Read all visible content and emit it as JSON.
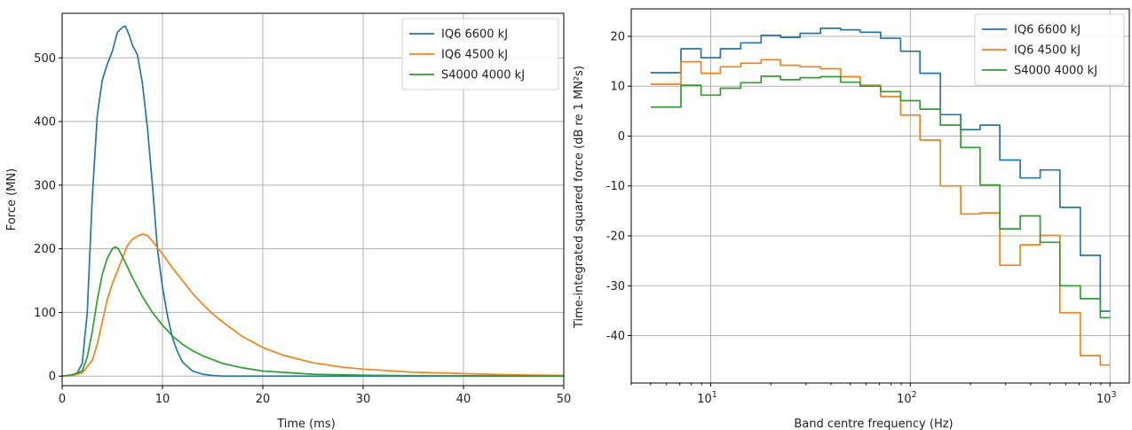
{
  "colors": {
    "blue": "#1f77b4",
    "orange": "#ff7f0e",
    "green": "#2ca02c"
  },
  "chart_data": [
    {
      "type": "line",
      "xlabel": "Time (ms)",
      "ylabel": "Force (MN)",
      "xlim": [
        0,
        50
      ],
      "ylim": [
        -15,
        570
      ],
      "xticks": [
        0,
        10,
        20,
        30,
        40,
        50
      ],
      "yticks": [
        0,
        100,
        200,
        300,
        400,
        500
      ],
      "grid": true,
      "legend_position": "top-right",
      "series": [
        {
          "name": "IQ6 6600 kJ",
          "color": "#1f77b4",
          "x": [
            0,
            1,
            1.5,
            2,
            2.5,
            3,
            3.5,
            4,
            4.5,
            5,
            5.5,
            6,
            6.3,
            6.7,
            7,
            7.5,
            8,
            8.5,
            9,
            9.5,
            10,
            10.5,
            11,
            11.5,
            12,
            13,
            14,
            15,
            16,
            20,
            30,
            40,
            50
          ],
          "y": [
            0,
            2,
            5,
            20,
            100,
            280,
            410,
            465,
            490,
            510,
            540,
            548,
            550,
            535,
            520,
            505,
            460,
            390,
            300,
            200,
            140,
            95,
            60,
            38,
            22,
            8,
            3,
            1,
            0,
            0,
            0,
            0,
            0
          ]
        },
        {
          "name": "IQ6 4500 kJ",
          "color": "#ff7f0e",
          "x": [
            0,
            1,
            2,
            3,
            3.5,
            4,
            4.5,
            5,
            5.5,
            6,
            6.5,
            7,
            7.5,
            8,
            8.5,
            9,
            10,
            11,
            12,
            13,
            14,
            15,
            16,
            18,
            20,
            22,
            25,
            28,
            30,
            35,
            40,
            45,
            50
          ],
          "y": [
            0,
            1,
            5,
            25,
            50,
            85,
            120,
            145,
            165,
            185,
            205,
            215,
            220,
            223,
            221,
            212,
            192,
            170,
            150,
            130,
            113,
            98,
            85,
            62,
            45,
            33,
            21,
            14,
            11,
            6,
            4,
            2,
            1
          ]
        },
        {
          "name": "S4000 4000 kJ",
          "color": "#2ca02c",
          "x": [
            0,
            1,
            2,
            2.5,
            3,
            3.5,
            4,
            4.5,
            5,
            5.3,
            5.6,
            6,
            6.5,
            7,
            8,
            9,
            10,
            11,
            12,
            13,
            14,
            16,
            18,
            20,
            25,
            30,
            35,
            40,
            50
          ],
          "y": [
            0,
            2,
            8,
            30,
            70,
            120,
            160,
            185,
            200,
            203,
            200,
            188,
            172,
            155,
            125,
            100,
            80,
            63,
            50,
            40,
            32,
            20,
            13,
            8,
            3,
            1.5,
            0.8,
            0.4,
            0
          ]
        }
      ]
    },
    {
      "type": "line",
      "xlabel": "Band centre frequency (Hz)",
      "ylabel": "Time-integrated squared force (dB re 1 MN²s)",
      "xscale": "log",
      "xlim": [
        4,
        1250
      ],
      "ylim": [
        -49.5,
        25.5
      ],
      "xticks": [
        10,
        100,
        1000
      ],
      "xtick_labels": [
        "10",
        "2",
        "3"
      ],
      "xtick_base": "10",
      "yticks": [
        -40,
        -30,
        -20,
        -10,
        0,
        10,
        20
      ],
      "grid": true,
      "legend_position": "top-right",
      "step": "mid",
      "bands": [
        5,
        6.3,
        8,
        10,
        12.5,
        16,
        20,
        25,
        31.5,
        40,
        50,
        63,
        80,
        100,
        125,
        160,
        200,
        250,
        315,
        400,
        500,
        630,
        800,
        1000
      ],
      "series": [
        {
          "name": "IQ6 6600 kJ",
          "color": "#1f77b4",
          "values": [
            12.7,
            12.7,
            17.5,
            15.7,
            17.5,
            18.7,
            20.2,
            19.8,
            20.6,
            21.6,
            21.3,
            20.8,
            19.6,
            17.0,
            12.6,
            4.3,
            1.3,
            2.2,
            -4.8,
            -8.4,
            -6.8,
            -14.3,
            -23.9,
            -35.1
          ]
        },
        {
          "name": "IQ6 4500 kJ",
          "color": "#ff7f0e",
          "values": [
            10.4,
            10.4,
            14.9,
            12.6,
            13.9,
            14.6,
            15.3,
            14.2,
            13.9,
            13.5,
            11.9,
            10.2,
            7.9,
            4.2,
            -0.8,
            -10.0,
            -15.6,
            -15.4,
            -25.9,
            -21.8,
            -19.9,
            -35.4,
            -44.0,
            -45.9
          ]
        },
        {
          "name": "S4000 4000 kJ",
          "color": "#2ca02c",
          "values": [
            5.8,
            5.8,
            10.2,
            8.2,
            9.6,
            10.7,
            12.0,
            11.3,
            11.7,
            11.9,
            10.8,
            10.0,
            8.9,
            7.1,
            5.4,
            2.2,
            -2.3,
            -9.8,
            -18.6,
            -16.0,
            -21.3,
            -30.0,
            -32.6,
            -36.4
          ]
        }
      ]
    }
  ]
}
